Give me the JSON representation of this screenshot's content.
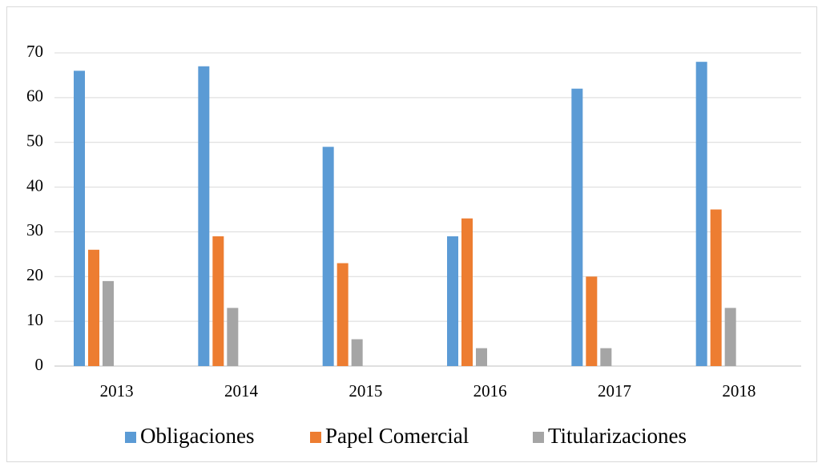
{
  "chart_data": {
    "type": "bar",
    "categories": [
      "2013",
      "2014",
      "2015",
      "2016",
      "2017",
      "2018"
    ],
    "series": [
      {
        "name": "Obligaciones",
        "color": "#5b9bd5",
        "values": [
          66,
          67,
          49,
          29,
          62,
          68
        ]
      },
      {
        "name": "Papel Comercial",
        "color": "#ed7d31",
        "values": [
          26,
          29,
          23,
          33,
          20,
          35
        ]
      },
      {
        "name": "Titularizaciones",
        "color": "#a5a5a5",
        "values": [
          19,
          13,
          6,
          4,
          4,
          13
        ]
      }
    ],
    "ylim": [
      0,
      70
    ],
    "yticks": [
      0,
      10,
      20,
      30,
      40,
      50,
      60,
      70
    ],
    "grid": true,
    "legend": "bottom"
  }
}
